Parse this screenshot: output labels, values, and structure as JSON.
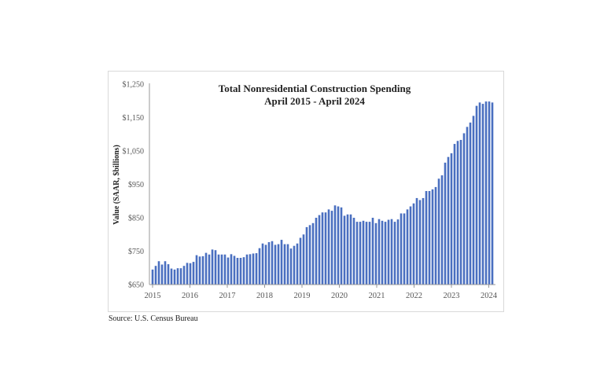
{
  "chart_data": {
    "type": "bar",
    "title": "Total Nonresidential Construction Spending",
    "subtitle": "April 2015 - April 2024",
    "xlabel": "",
    "ylabel": "Value (SAAR, $billions)",
    "ylim": [
      650,
      1250
    ],
    "yticks": [
      "$650",
      "$750",
      "$850",
      "$950",
      "$1,050",
      "$1,150",
      "$1,250"
    ],
    "ytick_values": [
      650,
      750,
      850,
      950,
      1050,
      1150,
      1250
    ],
    "xticks": [
      "2015",
      "2016",
      "2017",
      "2018",
      "2019",
      "2020",
      "2021",
      "2022",
      "2023",
      "2024"
    ],
    "grid": false,
    "bar_color": "#4a6fc0",
    "values": [
      695,
      706,
      720,
      710,
      720,
      711,
      698,
      695,
      699,
      699,
      706,
      715,
      714,
      718,
      738,
      734,
      735,
      745,
      740,
      755,
      753,
      740,
      740,
      740,
      731,
      741,
      736,
      730,
      730,
      732,
      740,
      741,
      743,
      744,
      759,
      773,
      769,
      777,
      780,
      769,
      771,
      784,
      771,
      771,
      758,
      766,
      773,
      790,
      800,
      822,
      828,
      834,
      850,
      858,
      866,
      866,
      875,
      871,
      887,
      884,
      881,
      856,
      860,
      860,
      850,
      838,
      838,
      841,
      838,
      838,
      850,
      834,
      846,
      841,
      838,
      844,
      846,
      838,
      845,
      863,
      863,
      875,
      884,
      893,
      909,
      903,
      909,
      930,
      930,
      935,
      942,
      967,
      977,
      1015,
      1032,
      1043,
      1071,
      1080,
      1083,
      1103,
      1122,
      1135,
      1155,
      1185,
      1195,
      1191,
      1198,
      1198,
      1195
    ]
  },
  "source": "Source:  U.S. Census Bureau"
}
